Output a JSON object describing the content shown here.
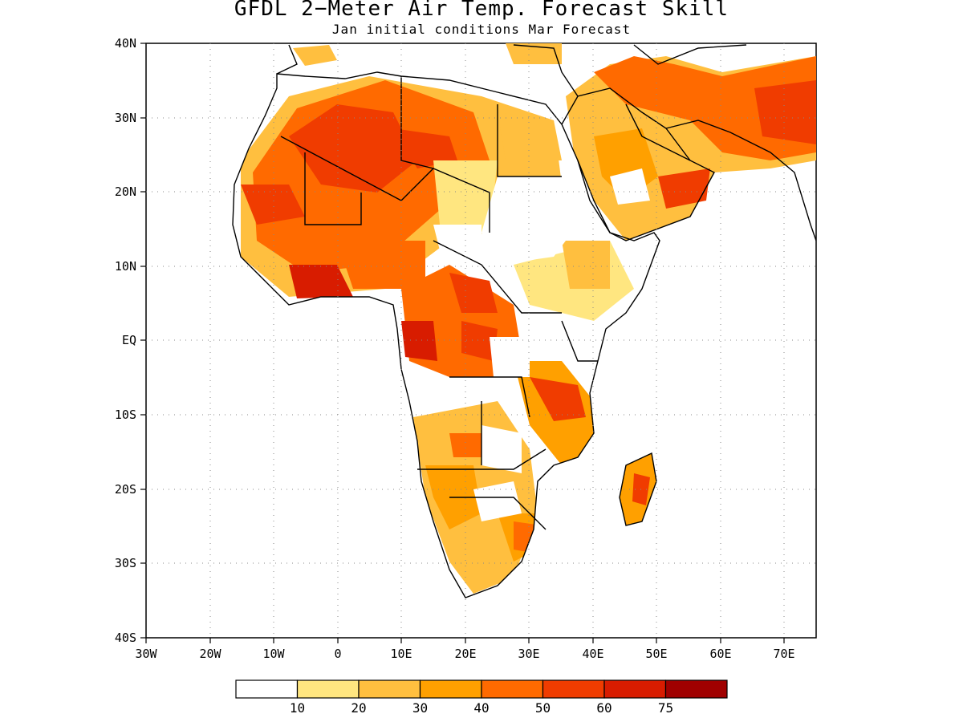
{
  "title": "GFDL 2−Meter Air Temp. Forecast Skill",
  "subtitle": "Jan initial conditions  Mar Forecast",
  "lon_labels": [
    "30W",
    "20W",
    "10W",
    "0",
    "10E",
    "20E",
    "30E",
    "40E",
    "50E",
    "60E",
    "70E"
  ],
  "lat_labels": [
    "40N",
    "30N",
    "20N",
    "10N",
    "EQ",
    "10S",
    "20S",
    "30S",
    "40S"
  ],
  "colorbar": {
    "colors": [
      "#ffffff",
      "#ffe680",
      "#ffbf3f",
      "#ffa000",
      "#ff6a00",
      "#f03c00",
      "#d81c00",
      "#a00000"
    ],
    "labels": [
      "10",
      "20",
      "30",
      "40",
      "50",
      "60",
      "75"
    ]
  },
  "chart_data": {
    "type": "heatmap",
    "title": "GFDL 2−Meter Air Temp. Forecast Skill",
    "subtitle": "Jan initial conditions  Mar Forecast",
    "x_range": [
      -30,
      75
    ],
    "y_range": [
      -40,
      40
    ],
    "x_ticks": [
      "30W",
      "20W",
      "10W",
      "0",
      "10E",
      "20E",
      "30E",
      "40E",
      "50E",
      "60E",
      "70E"
    ],
    "y_ticks": [
      "40N",
      "30N",
      "20N",
      "10N",
      "EQ",
      "10S",
      "20S",
      "30S",
      "40S"
    ],
    "color_levels": [
      10,
      20,
      30,
      40,
      50,
      60,
      75
    ],
    "grid": true
  }
}
